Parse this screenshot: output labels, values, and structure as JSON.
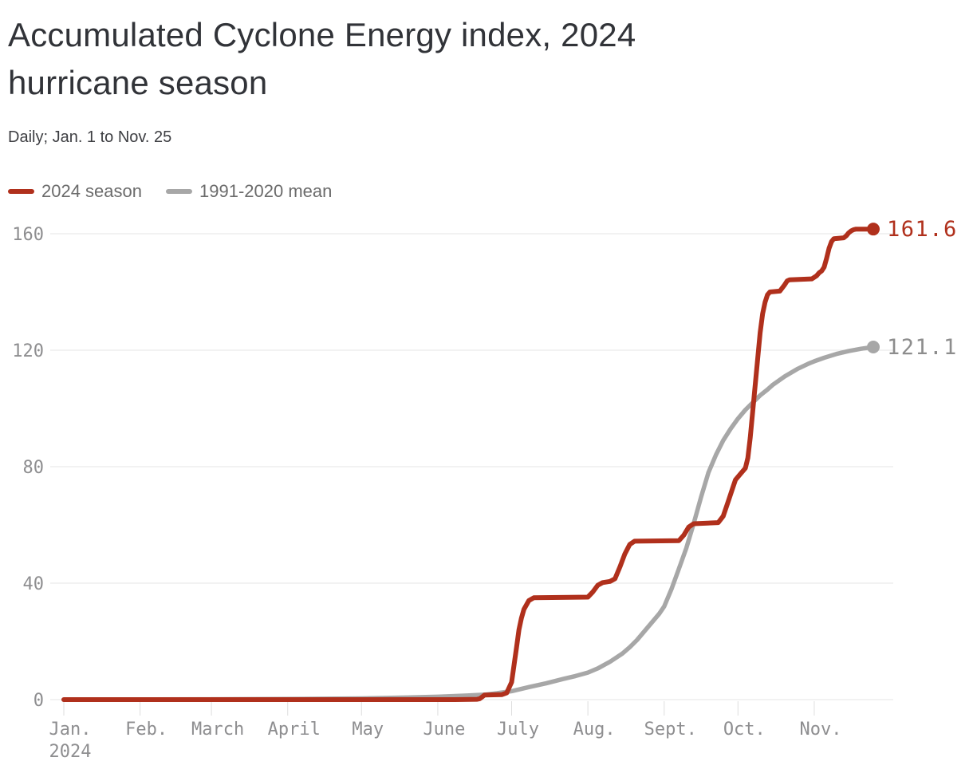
{
  "page": {
    "title_lines": [
      "Accumulated Cyclone Energy index, 2024",
      "hurricane season"
    ],
    "subtitle": "Daily; Jan. 1 to Nov. 25"
  },
  "chart_data": {
    "type": "line",
    "title": "Accumulated Cyclone Energy index, 2024 hurricane season",
    "subtitle": "Daily; Jan. 1 to Nov. 25",
    "grid": "horizontal",
    "legend_position": "top-left",
    "x_axis": {
      "unit": "day of year 2024",
      "range_days": [
        1,
        330
      ],
      "ticks": [
        {
          "day": 1,
          "label": "Jan.",
          "sublabel": "2024"
        },
        {
          "day": 32,
          "label": "Feb."
        },
        {
          "day": 61,
          "label": "March"
        },
        {
          "day": 92,
          "label": "April"
        },
        {
          "day": 122,
          "label": "May"
        },
        {
          "day": 153,
          "label": "June"
        },
        {
          "day": 183,
          "label": "July"
        },
        {
          "day": 214,
          "label": "Aug."
        },
        {
          "day": 245,
          "label": "Sept."
        },
        {
          "day": 275,
          "label": "Oct."
        },
        {
          "day": 306,
          "label": "Nov."
        }
      ]
    },
    "y_axis": {
      "ticks": [
        0,
        40,
        80,
        120,
        160
      ],
      "range": [
        0,
        165
      ]
    },
    "colors": {
      "grid": "#e4e4e4",
      "tick": "#dedede",
      "axis_text": "#8e8e90"
    },
    "series": [
      {
        "name": "2024 season",
        "color": "#b0301c",
        "label_color": "#b0301c",
        "stroke_width": 6,
        "end_value": 161.6,
        "end_label": "161.6",
        "points": [
          [
            1,
            0
          ],
          [
            60,
            0
          ],
          [
            120,
            0
          ],
          [
            160,
            0
          ],
          [
            169,
            0.1
          ],
          [
            170,
            0.3
          ],
          [
            171,
            0.9
          ],
          [
            172,
            1.6
          ],
          [
            179,
            1.7
          ],
          [
            181,
            2.3
          ],
          [
            183,
            6
          ],
          [
            184,
            12
          ],
          [
            185,
            18
          ],
          [
            186,
            24
          ],
          [
            187,
            28
          ],
          [
            188,
            31
          ],
          [
            190,
            34
          ],
          [
            192,
            35
          ],
          [
            214,
            35.2
          ],
          [
            216,
            37
          ],
          [
            218,
            39.3
          ],
          [
            220,
            40.2
          ],
          [
            223,
            40.6
          ],
          [
            225,
            41.5
          ],
          [
            227,
            45.5
          ],
          [
            229,
            50
          ],
          [
            231,
            53.3
          ],
          [
            233,
            54.4
          ],
          [
            251,
            54.6
          ],
          [
            253,
            56.5
          ],
          [
            255,
            59.3
          ],
          [
            257,
            60.4
          ],
          [
            267,
            60.8
          ],
          [
            269,
            63
          ],
          [
            271,
            68
          ],
          [
            273,
            73
          ],
          [
            274,
            75.5
          ],
          [
            276,
            77.5
          ],
          [
            278,
            79.5
          ],
          [
            279,
            83
          ],
          [
            280,
            90
          ],
          [
            281,
            99
          ],
          [
            282,
            108
          ],
          [
            283,
            117
          ],
          [
            284,
            126
          ],
          [
            285,
            132.5
          ],
          [
            286,
            136.5
          ],
          [
            287,
            139
          ],
          [
            288,
            140
          ],
          [
            292,
            140.3
          ],
          [
            294,
            142.5
          ],
          [
            295,
            143.8
          ],
          [
            296,
            144.2
          ],
          [
            305,
            144.5
          ],
          [
            307,
            145.6
          ],
          [
            308,
            146.6
          ],
          [
            309,
            147.2
          ],
          [
            310,
            148.5
          ],
          [
            311,
            151.5
          ],
          [
            312,
            155
          ],
          [
            313,
            157.3
          ],
          [
            314,
            158.3
          ],
          [
            318,
            158.6
          ],
          [
            319,
            159.3
          ],
          [
            320,
            160.3
          ],
          [
            321,
            161
          ],
          [
            322,
            161.4
          ],
          [
            323,
            161.6
          ],
          [
            330,
            161.6
          ]
        ]
      },
      {
        "name": "1991-2020 mean",
        "color": "#a7a7a7",
        "label_color": "#8d8d8d",
        "stroke_width": 5.5,
        "end_value": 121.1,
        "end_label": "121.1",
        "points": [
          [
            1,
            0
          ],
          [
            60,
            0.1
          ],
          [
            91,
            0.2
          ],
          [
            122,
            0.4
          ],
          [
            140,
            0.7
          ],
          [
            153,
            1
          ],
          [
            165,
            1.4
          ],
          [
            172,
            1.7
          ],
          [
            177,
            2.2
          ],
          [
            183,
            2.9
          ],
          [
            190,
            4.3
          ],
          [
            197,
            5.6
          ],
          [
            204,
            7.1
          ],
          [
            209,
            8.1
          ],
          [
            214,
            9.3
          ],
          [
            218,
            10.7
          ],
          [
            223,
            13
          ],
          [
            228,
            15.8
          ],
          [
            231,
            18
          ],
          [
            234,
            20.5
          ],
          [
            237,
            23.5
          ],
          [
            240,
            26.5
          ],
          [
            243,
            29.5
          ],
          [
            245,
            32
          ],
          [
            248,
            38
          ],
          [
            251,
            45
          ],
          [
            254,
            52
          ],
          [
            257,
            60.5
          ],
          [
            260,
            69.5
          ],
          [
            263,
            78
          ],
          [
            266,
            84
          ],
          [
            269,
            89
          ],
          [
            272,
            93
          ],
          [
            275,
            96.5
          ],
          [
            278,
            99.5
          ],
          [
            281,
            102
          ],
          [
            284,
            104.5
          ],
          [
            287,
            106.5
          ],
          [
            289,
            108
          ],
          [
            294,
            111
          ],
          [
            299,
            113.5
          ],
          [
            304,
            115.5
          ],
          [
            306,
            116.2
          ],
          [
            310,
            117.4
          ],
          [
            315,
            118.7
          ],
          [
            320,
            119.7
          ],
          [
            325,
            120.5
          ],
          [
            330,
            121.1
          ]
        ]
      }
    ]
  }
}
